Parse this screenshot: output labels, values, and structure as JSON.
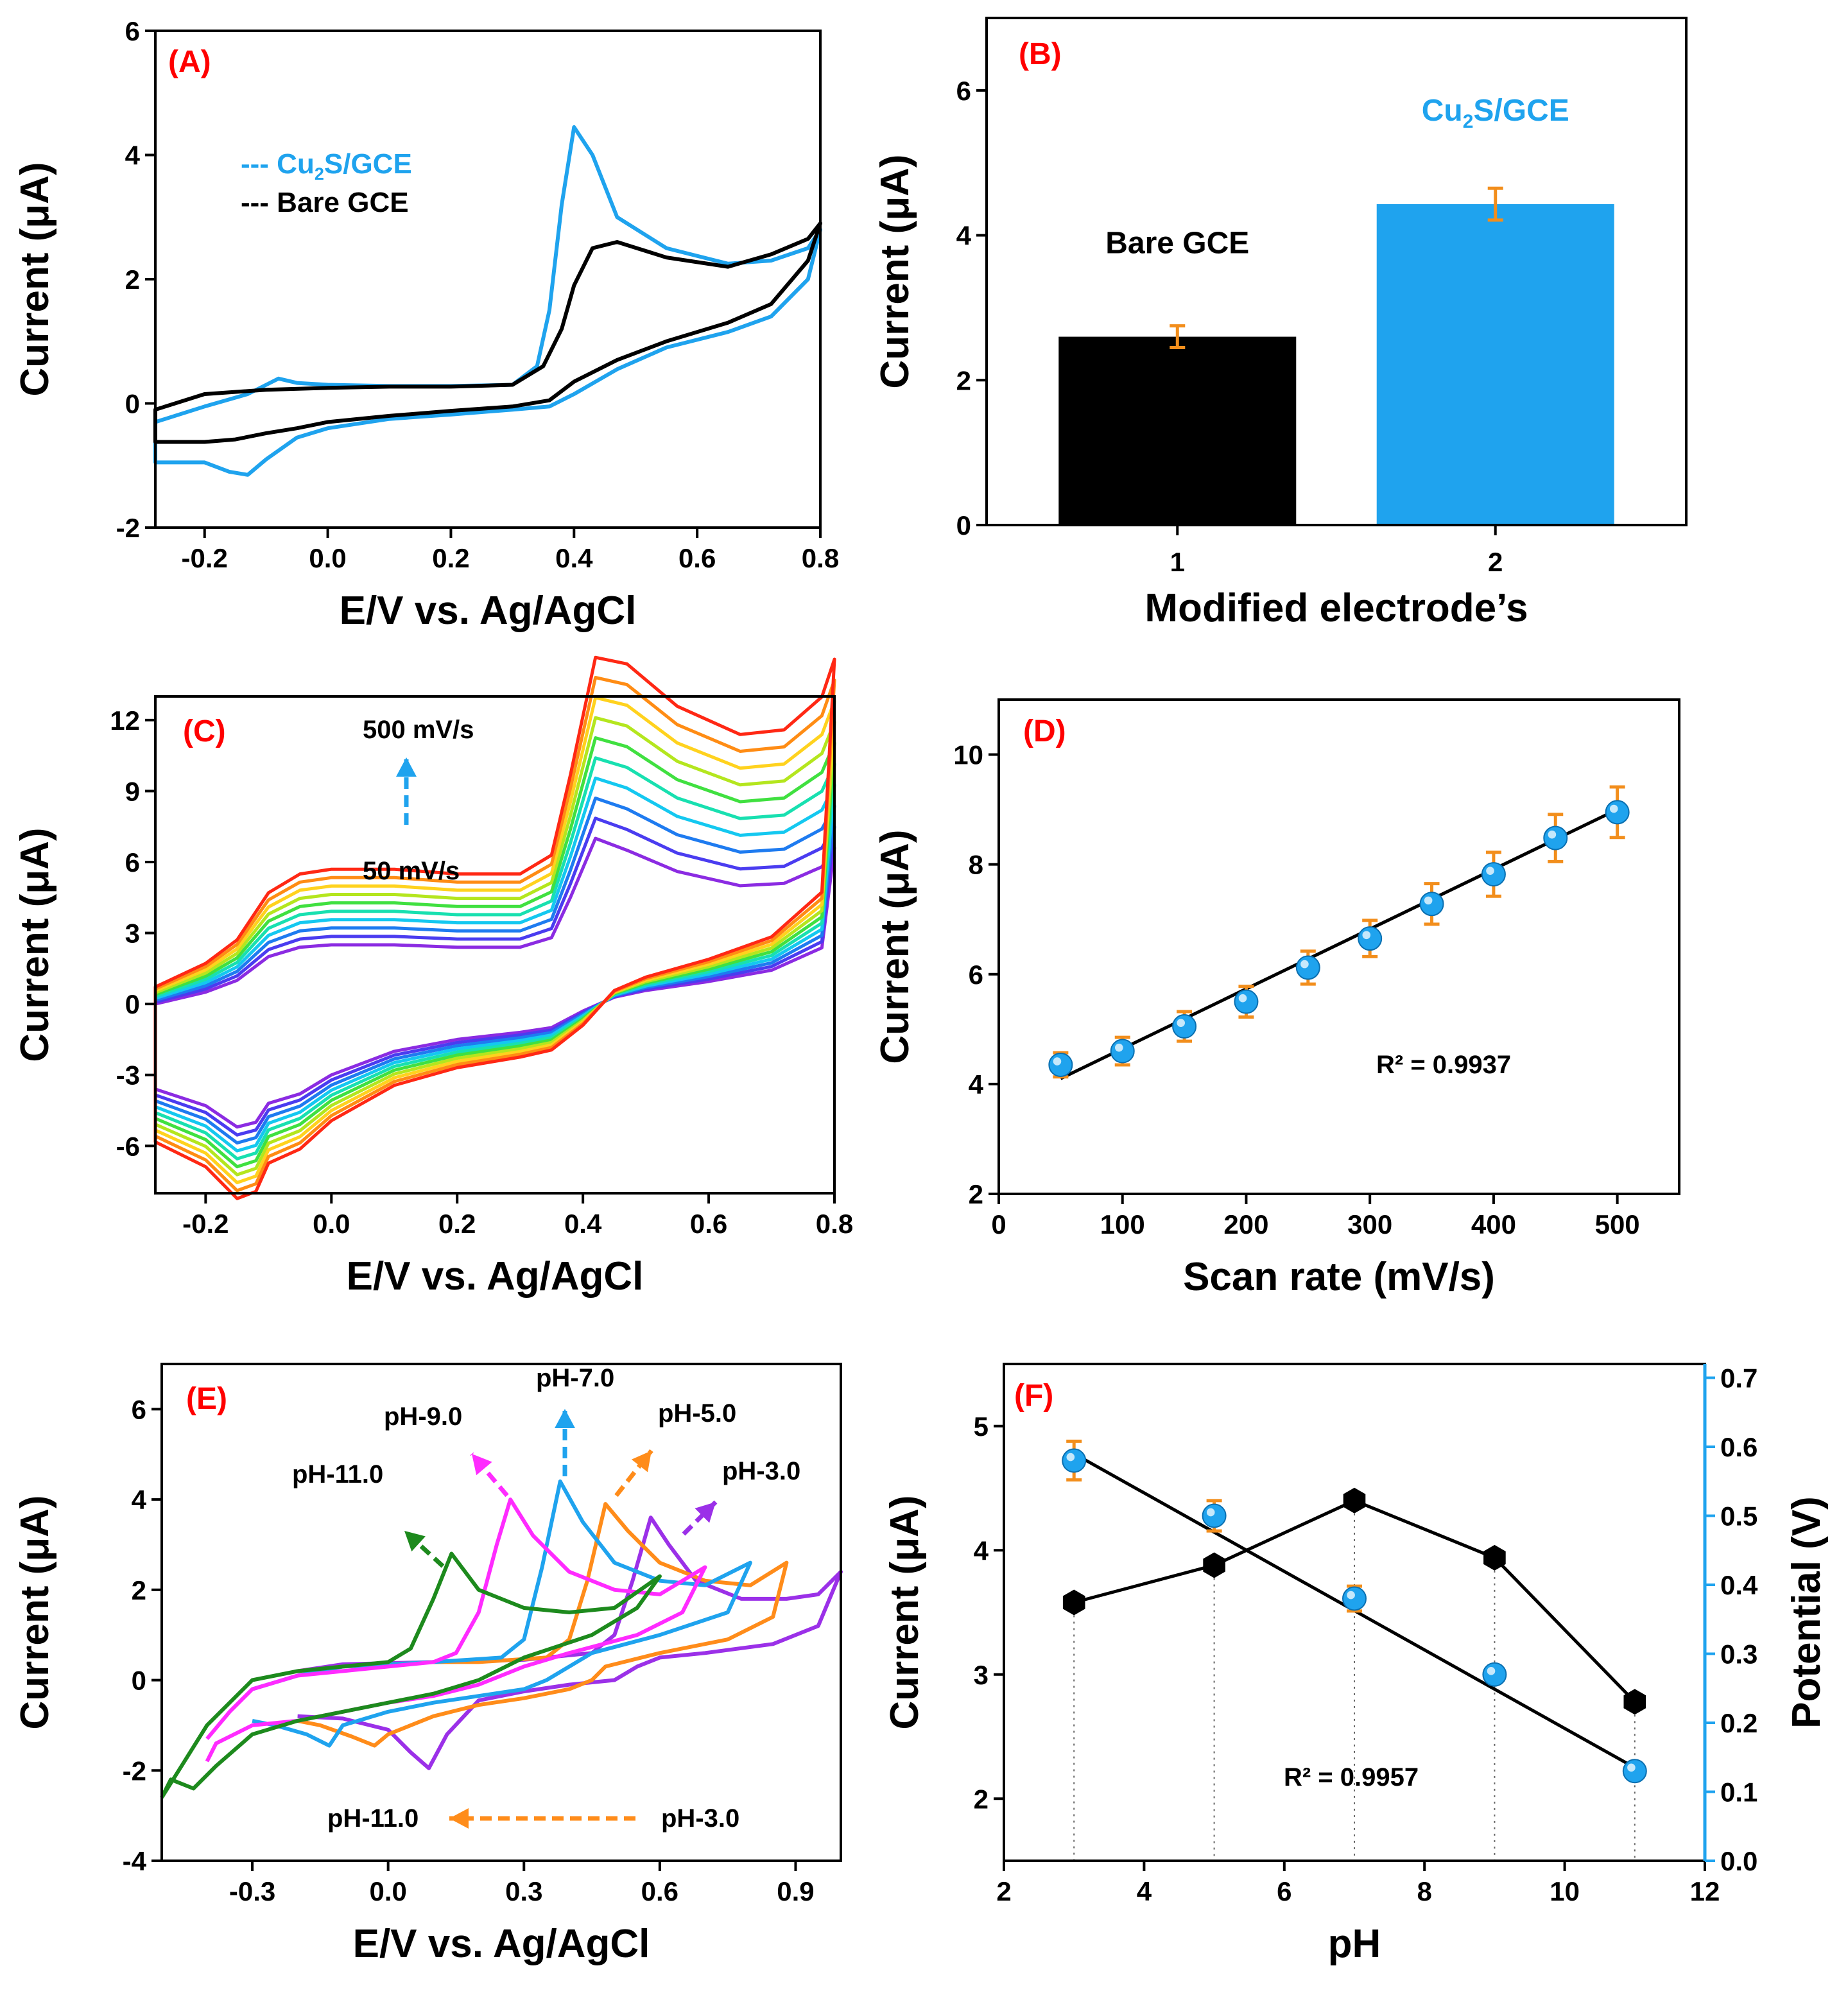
{
  "colors": {
    "cu2s": "#1fa3ee",
    "bare": "#000000",
    "error": "#f28e1c",
    "label": "#ff0000",
    "r2": "#1b1f6e",
    "potential_axis": "#1fa3ee",
    "ph3": "#9b30e8",
    "ph5": "#ff8c1a",
    "ph7": "#1fa3ee",
    "ph9": "#ff2bff",
    "ph11": "#1d8a1d"
  },
  "chart_data": [
    {
      "id": "A",
      "panel_label": "(A)",
      "type": "line",
      "title": "",
      "xlabel": "E/V vs. Ag/AgCl",
      "ylabel": "Current (μA)",
      "xlim": [
        -0.28,
        0.8
      ],
      "ylim": [
        -2,
        6
      ],
      "xticks": [
        -0.2,
        0.0,
        0.2,
        0.4,
        0.6,
        0.8
      ],
      "xtick_labels": [
        "-0.2",
        "0.0",
        "0.2",
        "0.4",
        "0.6",
        "0.8"
      ],
      "yticks": [
        -2,
        0,
        2,
        4,
        6
      ],
      "ytick_labels": [
        "-2",
        "0",
        "2",
        "4",
        "6"
      ],
      "legend": [
        {
          "prefix": "--- Cu",
          "sub": "2",
          "suffix": "S/GCE",
          "color_key": "cu2s"
        },
        {
          "prefix": "--- Bare GCE",
          "sub": "",
          "suffix": "",
          "color_key": "bare"
        }
      ],
      "series": [
        {
          "name": "Cu2S/GCE",
          "color_key": "cu2s",
          "x": [
            -0.28,
            -0.2,
            -0.13,
            -0.1,
            -0.08,
            -0.05,
            0,
            0.1,
            0.2,
            0.3,
            0.34,
            0.36,
            0.38,
            0.4,
            0.43,
            0.47,
            0.55,
            0.65,
            0.72,
            0.78,
            0.8,
            0.78,
            0.72,
            0.65,
            0.55,
            0.47,
            0.4,
            0.36,
            0.3,
            0.2,
            0.1,
            0,
            -0.05,
            -0.1,
            -0.13,
            -0.16,
            -0.2,
            -0.28
          ],
          "y": [
            -0.3,
            -0.05,
            0.15,
            0.3,
            0.4,
            0.33,
            0.3,
            0.28,
            0.28,
            0.3,
            0.6,
            1.5,
            3.2,
            4.45,
            4.0,
            3.0,
            2.5,
            2.25,
            2.3,
            2.5,
            2.8,
            2.0,
            1.4,
            1.15,
            0.9,
            0.55,
            0.15,
            -0.05,
            -0.1,
            -0.18,
            -0.25,
            -0.4,
            -0.55,
            -0.9,
            -1.15,
            -1.1,
            -0.95,
            -0.95
          ]
        },
        {
          "name": "Bare GCE",
          "color_key": "bare",
          "x": [
            -0.28,
            -0.2,
            -0.1,
            0,
            0.1,
            0.2,
            0.3,
            0.35,
            0.38,
            0.4,
            0.43,
            0.47,
            0.55,
            0.65,
            0.72,
            0.78,
            0.8,
            0.78,
            0.72,
            0.65,
            0.55,
            0.47,
            0.4,
            0.36,
            0.3,
            0.2,
            0.1,
            0,
            -0.05,
            -0.1,
            -0.15,
            -0.2,
            -0.28
          ],
          "y": [
            -0.1,
            0.15,
            0.22,
            0.25,
            0.27,
            0.27,
            0.3,
            0.6,
            1.2,
            1.9,
            2.5,
            2.6,
            2.35,
            2.2,
            2.4,
            2.65,
            2.9,
            2.3,
            1.6,
            1.3,
            1.0,
            0.7,
            0.35,
            0.05,
            -0.05,
            -0.12,
            -0.2,
            -0.3,
            -0.4,
            -0.48,
            -0.58,
            -0.62,
            -0.62
          ]
        }
      ]
    },
    {
      "id": "B",
      "panel_label": "(B)",
      "type": "bar",
      "title": "",
      "xlabel": "Modified electrode’s",
      "ylabel": "Current (μA)",
      "ylim": [
        0,
        7
      ],
      "yticks": [
        0,
        2,
        4,
        6
      ],
      "ytick_labels": [
        "0",
        "2",
        "4",
        "6"
      ],
      "categories": [
        "1",
        "2"
      ],
      "values": [
        2.6,
        4.43
      ],
      "errors": [
        0.15,
        0.22
      ],
      "bar_color_keys": [
        "bare",
        "cu2s"
      ],
      "bar_annotations": [
        {
          "prefix": "Bare GCE",
          "sub": "",
          "suffix": "",
          "color_key": "bare"
        },
        {
          "prefix": "Cu",
          "sub": "2",
          "suffix": "S/GCE",
          "color_key": "cu2s"
        }
      ]
    },
    {
      "id": "C",
      "panel_label": "(C)",
      "type": "line",
      "title": "",
      "xlabel": "E/V vs. Ag/AgCl",
      "ylabel": "Current (μA)",
      "xlim": [
        -0.28,
        0.8
      ],
      "ylim": [
        -8,
        13
      ],
      "xticks": [
        -0.2,
        0.0,
        0.2,
        0.4,
        0.6,
        0.8
      ],
      "xtick_labels": [
        "-0.2",
        "0.0",
        "0.2",
        "0.4",
        "0.6",
        "0.8"
      ],
      "yticks": [
        -6,
        -3,
        0,
        3,
        6,
        9,
        12
      ],
      "ytick_labels": [
        "-6",
        "-3",
        "0",
        "3",
        "6",
        "9",
        "12"
      ],
      "scan_rates_mV_s": [
        50,
        100,
        150,
        200,
        250,
        300,
        350,
        400,
        450,
        500
      ],
      "series_colors": [
        "#8b2be2",
        "#4a3cf0",
        "#1e7bf0",
        "#14c8f0",
        "#18e0b0",
        "#40e040",
        "#b4e61e",
        "#ffd21e",
        "#ff8c14",
        "#ff2814"
      ],
      "base_shape": {
        "anodic": {
          "x": [
            -0.28,
            -0.2,
            -0.15,
            -0.1,
            -0.05,
            0.0,
            0.1,
            0.2,
            0.3,
            0.35,
            0.38,
            0.42,
            0.47,
            0.55,
            0.65,
            0.72,
            0.78,
            0.8
          ],
          "y": [
            0,
            0.5,
            1.0,
            2.0,
            2.4,
            2.5,
            2.5,
            2.4,
            2.4,
            2.8,
            4.5,
            7.0,
            6.5,
            5.6,
            5.0,
            5.1,
            5.8,
            6.6
          ]
        },
        "cathodic": {
          "x": [
            -0.28,
            -0.2,
            -0.15,
            -0.12,
            -0.1,
            -0.05,
            0.0,
            0.1,
            0.2,
            0.3,
            0.35,
            0.4,
            0.45,
            0.5,
            0.6,
            0.7,
            0.78,
            0.8
          ],
          "y": [
            -3.6,
            -4.3,
            -5.2,
            -5.0,
            -4.2,
            -3.8,
            -3.0,
            -2.0,
            -1.5,
            -1.2,
            -1.0,
            -0.3,
            0.3,
            0.6,
            1.0,
            1.5,
            2.5,
            6.6
          ]
        }
      },
      "annotations": [
        "500 mV/s",
        "50 mV/s"
      ]
    },
    {
      "id": "D",
      "panel_label": "(D)",
      "type": "scatter",
      "title": "",
      "xlabel": "Scan rate (mV/s)",
      "ylabel": "Current (μA)",
      "xlim": [
        0,
        550
      ],
      "ylim": [
        2,
        11
      ],
      "xticks": [
        0,
        100,
        200,
        300,
        400,
        500
      ],
      "xtick_labels": [
        "0",
        "100",
        "200",
        "300",
        "400",
        "500"
      ],
      "yticks": [
        2,
        4,
        6,
        8,
        10
      ],
      "ytick_labels": [
        "2",
        "4",
        "6",
        "8",
        "10"
      ],
      "x": [
        50,
        100,
        150,
        200,
        250,
        300,
        350,
        400,
        450,
        500
      ],
      "y": [
        4.35,
        4.6,
        5.05,
        5.5,
        6.12,
        6.65,
        7.28,
        7.82,
        8.48,
        8.95
      ],
      "errors": [
        0.22,
        0.25,
        0.27,
        0.28,
        0.3,
        0.33,
        0.37,
        0.4,
        0.43,
        0.46
      ],
      "fit": {
        "x": [
          50,
          500
        ],
        "y": [
          4.1,
          9.0
        ]
      },
      "r2_label": "R² = 0.9937"
    },
    {
      "id": "E",
      "panel_label": "(E)",
      "type": "line",
      "title": "",
      "xlabel": "E/V vs. Ag/AgCl",
      "ylabel": "Current (μA)",
      "xlim": [
        -0.5,
        1.0
      ],
      "ylim": [
        -4,
        7
      ],
      "xticks": [
        -0.3,
        0.0,
        0.3,
        0.6,
        0.9
      ],
      "xtick_labels": [
        "-0.3",
        "0.0",
        "0.3",
        "0.6",
        "0.9"
      ],
      "yticks": [
        -4,
        -2,
        0,
        2,
        4,
        6
      ],
      "ytick_labels": [
        "-4",
        "-2",
        "0",
        "2",
        "4",
        "6"
      ],
      "series": [
        {
          "name": "pH-3.0",
          "color_key": "ph3",
          "x": [
            -0.2,
            -0.1,
            0.1,
            0.3,
            0.45,
            0.5,
            0.54,
            0.58,
            0.62,
            0.68,
            0.78,
            0.88,
            0.95,
            1.0,
            0.95,
            0.85,
            0.7,
            0.6,
            0.55,
            0.5,
            0.4,
            0.3,
            0.2,
            0.13,
            0.09,
            0.05,
            0.0,
            -0.1,
            -0.2
          ],
          "y": [
            0.2,
            0.35,
            0.4,
            0.45,
            0.6,
            1.0,
            2.2,
            3.6,
            3.0,
            2.2,
            1.8,
            1.8,
            1.9,
            2.4,
            1.2,
            0.8,
            0.6,
            0.5,
            0.3,
            0.0,
            -0.1,
            -0.25,
            -0.45,
            -1.2,
            -1.95,
            -1.6,
            -1.1,
            -0.85,
            -0.8
          ]
        },
        {
          "name": "pH-5.0",
          "color_key": "ph5",
          "x": [
            -0.2,
            -0.1,
            0.1,
            0.2,
            0.35,
            0.4,
            0.44,
            0.48,
            0.53,
            0.6,
            0.7,
            0.8,
            0.88,
            0.85,
            0.75,
            0.6,
            0.48,
            0.45,
            0.4,
            0.3,
            0.2,
            0.1,
            0.0,
            -0.03,
            -0.08,
            -0.15,
            -0.2
          ],
          "y": [
            0.2,
            0.3,
            0.4,
            0.4,
            0.5,
            0.9,
            2.2,
            3.9,
            3.3,
            2.6,
            2.2,
            2.1,
            2.6,
            1.4,
            0.9,
            0.6,
            0.3,
            0.0,
            -0.2,
            -0.4,
            -0.55,
            -0.8,
            -1.2,
            -1.45,
            -1.25,
            -1.0,
            -0.9
          ]
        },
        {
          "name": "pH-7.0",
          "color_key": "ph7",
          "x": [
            -0.3,
            -0.2,
            -0.1,
            0.1,
            0.25,
            0.3,
            0.34,
            0.38,
            0.43,
            0.5,
            0.6,
            0.7,
            0.8,
            0.75,
            0.6,
            0.45,
            0.4,
            0.35,
            0.3,
            0.2,
            0.1,
            0.0,
            -0.1,
            -0.13,
            -0.18,
            -0.25,
            -0.3
          ],
          "y": [
            -0.2,
            0.1,
            0.3,
            0.4,
            0.5,
            0.9,
            2.5,
            4.4,
            3.5,
            2.6,
            2.2,
            2.1,
            2.6,
            1.5,
            1.0,
            0.6,
            0.3,
            0.0,
            -0.2,
            -0.35,
            -0.5,
            -0.7,
            -1.0,
            -1.45,
            -1.2,
            -1.0,
            -0.9
          ]
        },
        {
          "name": "pH-9.0",
          "color_key": "ph9",
          "x": [
            -0.4,
            -0.35,
            -0.3,
            -0.2,
            0.0,
            0.1,
            0.15,
            0.2,
            0.24,
            0.27,
            0.32,
            0.4,
            0.5,
            0.6,
            0.7,
            0.65,
            0.55,
            0.4,
            0.3,
            0.2,
            0.1,
            0.0,
            -0.1,
            -0.2,
            -0.3,
            -0.38,
            -0.4
          ],
          "y": [
            -1.3,
            -0.7,
            -0.2,
            0.1,
            0.3,
            0.4,
            0.6,
            1.5,
            3.0,
            4.0,
            3.2,
            2.4,
            2.0,
            1.9,
            2.5,
            1.5,
            1.0,
            0.6,
            0.3,
            -0.1,
            -0.35,
            -0.5,
            -0.7,
            -0.9,
            -1.0,
            -1.4,
            -1.8
          ]
        },
        {
          "name": "pH-11.0",
          "color_key": "ph11",
          "x": [
            -0.5,
            -0.45,
            -0.4,
            -0.3,
            -0.2,
            -0.1,
            0.0,
            0.05,
            0.1,
            0.14,
            0.2,
            0.3,
            0.4,
            0.5,
            0.6,
            0.55,
            0.45,
            0.3,
            0.2,
            0.1,
            0.0,
            -0.1,
            -0.2,
            -0.3,
            -0.38,
            -0.43,
            -0.48,
            -0.5
          ],
          "y": [
            -2.6,
            -1.8,
            -1.0,
            0.0,
            0.2,
            0.3,
            0.4,
            0.7,
            1.8,
            2.8,
            2.0,
            1.6,
            1.5,
            1.6,
            2.3,
            1.6,
            1.0,
            0.5,
            0.0,
            -0.3,
            -0.5,
            -0.7,
            -0.9,
            -1.2,
            -1.9,
            -2.4,
            -2.2,
            -2.6
          ]
        }
      ],
      "peak_labels": [
        "pH-3.0",
        "pH-5.0",
        "pH-7.0",
        "pH-9.0",
        "pH-11.0"
      ],
      "bottom_arrow_labels": [
        "pH-11.0",
        "pH-3.0"
      ]
    },
    {
      "id": "F",
      "panel_label": "(F)",
      "type": "line",
      "title": "",
      "xlabel": "pH",
      "ylabel": "Current (μA)",
      "ylabel_right": "Potential (V)",
      "xlim": [
        2,
        12
      ],
      "ylim": [
        1.5,
        5.5
      ],
      "ylim_right": [
        0.0,
        0.72
      ],
      "xticks": [
        2,
        4,
        6,
        8,
        10,
        12
      ],
      "xtick_labels": [
        "2",
        "4",
        "6",
        "8",
        "10",
        "12"
      ],
      "yticks": [
        2,
        3,
        4,
        5
      ],
      "ytick_labels": [
        "2",
        "3",
        "4",
        "5"
      ],
      "yticks_right": [
        0.0,
        0.1,
        0.2,
        0.3,
        0.4,
        0.5,
        0.6,
        0.7
      ],
      "ytick_labels_right": [
        "0.0",
        "0.1",
        "0.2",
        "0.3",
        "0.4",
        "0.5",
        "0.6",
        "0.7"
      ],
      "series": [
        {
          "name": "Current",
          "axis": "left",
          "marker": "hexagon",
          "color_key": "bare",
          "x": [
            3,
            5,
            7,
            9,
            11
          ],
          "y": [
            3.58,
            3.88,
            4.4,
            3.94,
            2.78
          ]
        },
        {
          "name": "Potential",
          "axis": "right",
          "marker": "circle",
          "color_key": "cu2s",
          "x": [
            3,
            5,
            7,
            9,
            11
          ],
          "y": [
            0.58,
            0.5,
            0.38,
            0.27,
            0.13
          ],
          "errors": [
            0.028,
            0.022,
            0.018,
            0.01,
            0.01
          ],
          "fit": {
            "x": [
              3,
              11
            ],
            "y": [
              0.59,
              0.135
            ]
          }
        }
      ],
      "r2_label": "R² = 0.9957"
    }
  ]
}
